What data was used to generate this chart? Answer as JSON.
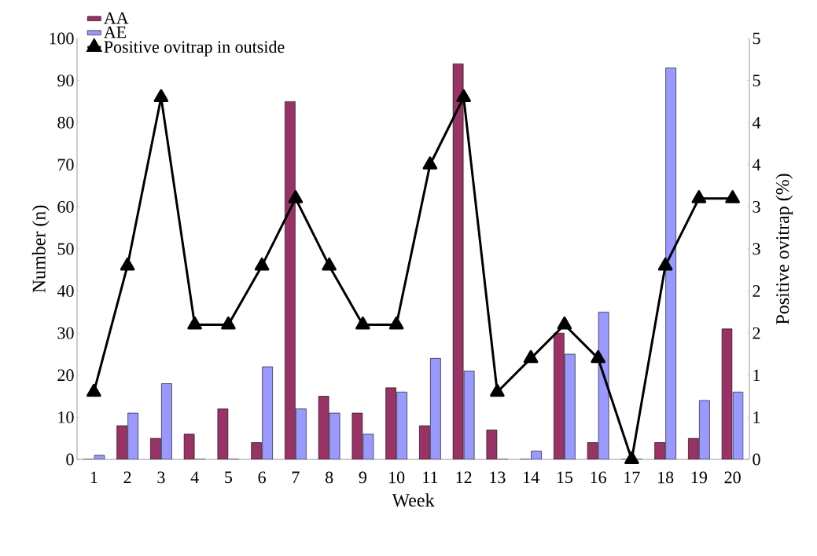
{
  "chart_data": {
    "type": "bar",
    "xlabel": "Week",
    "ylabel": "Number (n)",
    "y2label": "Positive ovitrap (%)",
    "categories": [
      "1",
      "2",
      "3",
      "4",
      "5",
      "6",
      "7",
      "8",
      "9",
      "10",
      "11",
      "12",
      "13",
      "14",
      "15",
      "16",
      "17",
      "18",
      "19",
      "20"
    ],
    "series": [
      {
        "name": "AA",
        "color": "#993366",
        "values": [
          0,
          8,
          5,
          6,
          12,
          4,
          85,
          15,
          11,
          17,
          8,
          94,
          7,
          0,
          30,
          4,
          0,
          4,
          5,
          31
        ]
      },
      {
        "name": "AE",
        "color": "#9999ff",
        "values": [
          1,
          11,
          18,
          0,
          0,
          22,
          12,
          11,
          6,
          16,
          24,
          21,
          0,
          2,
          25,
          35,
          0,
          93,
          14,
          16
        ]
      },
      {
        "name": "Positive ovitrap in outside",
        "type": "line",
        "axis": "y2",
        "color": "#000000",
        "marker": "triangle",
        "line_style": "solid",
        "values": [
          0.8,
          2.3,
          4.3,
          1.6,
          1.6,
          2.3,
          3.1,
          2.3,
          1.6,
          1.6,
          3.5,
          4.3,
          0.8,
          1.2,
          1.6,
          1.2,
          0,
          2.3,
          3.1,
          3.1
        ]
      }
    ],
    "ylim": [
      0,
      100
    ],
    "yticks": [
      0,
      10,
      20,
      30,
      40,
      50,
      60,
      70,
      80,
      90,
      100
    ],
    "y2lim": [
      0,
      5
    ],
    "y2ticks": [
      0,
      {
        "value": 0.5,
        "label": "1"
      },
      1,
      {
        "value": 1.5,
        "label": "2"
      },
      2,
      {
        "value": 2.5,
        "label": "3"
      },
      3,
      {
        "value": 3.5,
        "label": "4"
      },
      4,
      {
        "value": 4.5,
        "label": "5"
      },
      5
    ],
    "legend": "top left",
    "grid": false
  }
}
